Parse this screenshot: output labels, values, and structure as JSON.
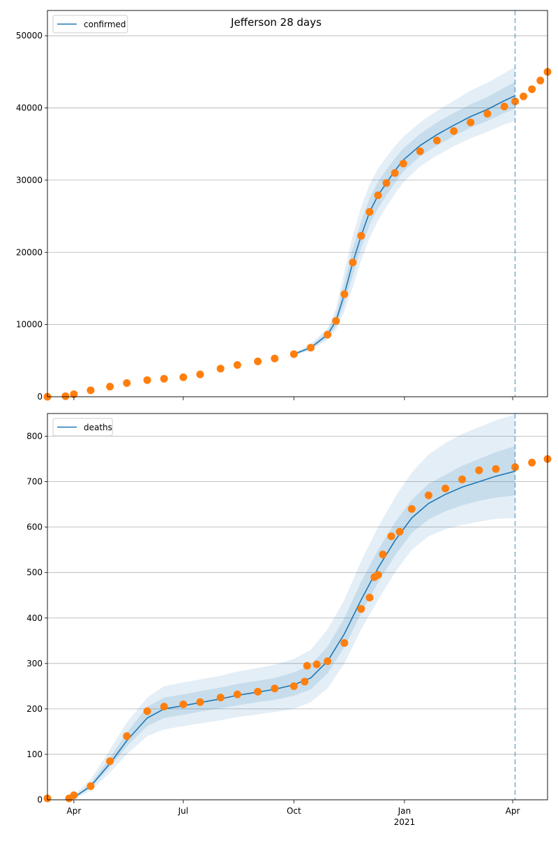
{
  "figure": {
    "title": "Jefferson 28 days",
    "colors": {
      "model": "#1f77b4",
      "observed": "#ff7f0e",
      "band": "#1f77b4",
      "grid": "#b0b0b0"
    }
  },
  "chart_data": [
    {
      "type": "line",
      "name": "confirmed-panel",
      "legend": [
        "confirmed"
      ],
      "legend_placement": "top-left",
      "grid": "y",
      "ylim": [
        0,
        53500
      ],
      "yticks": [
        0,
        10000,
        20000,
        30000,
        40000,
        50000
      ],
      "ytick_labels": [
        "0",
        "10000",
        "20000",
        "30000",
        "40000",
        "50000"
      ],
      "xlim": [
        "2020-03-10",
        "2021-04-30"
      ],
      "xticks": [
        "2020-04-01",
        "2020-07-01",
        "2020-10-01",
        "2021-01-01",
        "2021-04-01"
      ],
      "xtick_labels": [
        "Apr",
        "Jul",
        "Oct",
        "Jan",
        "Apr"
      ],
      "xtick_sublabel": "2021",
      "forecast_start": "2021-04-03",
      "series": [
        {
          "name": "confirmed",
          "role": "model",
          "x": [
            "2020-10-01",
            "2020-10-15",
            "2020-10-29",
            "2020-11-05",
            "2020-11-12",
            "2020-11-19",
            "2020-11-26",
            "2020-12-03",
            "2020-12-10",
            "2020-12-17",
            "2020-12-24",
            "2020-12-31",
            "2021-01-14",
            "2021-01-28",
            "2021-02-11",
            "2021-02-25",
            "2021-03-11",
            "2021-03-25",
            "2021-04-03"
          ],
          "y": [
            5900,
            6800,
            8600,
            10500,
            14200,
            18600,
            22300,
            25600,
            27900,
            29600,
            31300,
            32800,
            34800,
            36300,
            37600,
            38800,
            39800,
            41000,
            41700
          ]
        },
        {
          "name": "confirmed observed",
          "role": "observed",
          "x": [
            "2020-03-10",
            "2020-03-25",
            "2020-04-01",
            "2020-04-15",
            "2020-05-01",
            "2020-05-15",
            "2020-06-01",
            "2020-06-15",
            "2020-07-01",
            "2020-07-15",
            "2020-08-01",
            "2020-08-15",
            "2020-09-01",
            "2020-09-15",
            "2020-10-01",
            "2020-10-15",
            "2020-10-29",
            "2020-11-05",
            "2020-11-12",
            "2020-11-19",
            "2020-11-26",
            "2020-12-03",
            "2020-12-10",
            "2020-12-17",
            "2020-12-24",
            "2020-12-31",
            "2021-01-14",
            "2021-01-28",
            "2021-02-11",
            "2021-02-25",
            "2021-03-11",
            "2021-03-25",
            "2021-04-03",
            "2021-04-10",
            "2021-04-17",
            "2021-04-24",
            "2021-04-30"
          ],
          "y": [
            0,
            80,
            350,
            900,
            1400,
            1900,
            2300,
            2500,
            2700,
            3100,
            3900,
            4400,
            4900,
            5300,
            5900,
            6800,
            8600,
            10500,
            14200,
            18600,
            22300,
            25600,
            27900,
            29600,
            31000,
            32300,
            34000,
            35500,
            36800,
            38000,
            39200,
            40200,
            40900,
            41600,
            42600,
            43800,
            45000
          ]
        }
      ],
      "bands": [
        {
          "x": [
            "2020-10-01",
            "2020-10-15",
            "2020-10-29",
            "2020-11-05",
            "2020-11-12",
            "2020-11-19",
            "2020-11-26",
            "2020-12-03",
            "2020-12-10",
            "2020-12-17",
            "2020-12-24",
            "2020-12-31",
            "2021-01-14",
            "2021-01-28",
            "2021-02-11",
            "2021-02-25",
            "2021-03-11",
            "2021-03-25",
            "2021-04-03"
          ],
          "lower": [
            5700,
            6400,
            7900,
            9200,
            11800,
            15200,
            18900,
            22000,
            24400,
            26300,
            28100,
            29700,
            31900,
            33400,
            34700,
            35800,
            36700,
            37700,
            38200
          ],
          "upper": [
            6100,
            7300,
            9500,
            12200,
            17300,
            22300,
            26300,
            29400,
            31600,
            33200,
            34700,
            36000,
            38000,
            39600,
            41000,
            42400,
            43500,
            44800,
            45700
          ]
        },
        {
          "x": [
            "2020-10-01",
            "2020-10-15",
            "2020-10-29",
            "2020-11-05",
            "2020-11-12",
            "2020-11-19",
            "2020-11-26",
            "2020-12-03",
            "2020-12-10",
            "2020-12-17",
            "2020-12-24",
            "2020-12-31",
            "2021-01-14",
            "2021-01-28",
            "2021-02-11",
            "2021-02-25",
            "2021-03-11",
            "2021-03-25",
            "2021-04-03"
          ],
          "lower": [
            5800,
            6600,
            8200,
            9800,
            12900,
            16800,
            20600,
            23800,
            26100,
            27900,
            29600,
            31200,
            33300,
            34800,
            36100,
            37300,
            38200,
            39300,
            39900
          ],
          "upper": [
            6000,
            7000,
            9100,
            11400,
            15800,
            20600,
            24300,
            27500,
            29800,
            31400,
            33000,
            34400,
            36400,
            38000,
            39300,
            40500,
            41500,
            42800,
            43600
          ]
        }
      ]
    },
    {
      "type": "line",
      "name": "deaths-panel",
      "legend": [
        "deaths"
      ],
      "legend_placement": "top-left",
      "grid": "y",
      "ylim": [
        0,
        850
      ],
      "yticks": [
        0,
        100,
        200,
        300,
        400,
        500,
        600,
        700,
        800
      ],
      "ytick_labels": [
        "0",
        "100",
        "200",
        "300",
        "400",
        "500",
        "600",
        "700",
        "800"
      ],
      "xlim": [
        "2020-03-10",
        "2021-04-30"
      ],
      "xticks": [
        "2020-04-01",
        "2020-07-01",
        "2020-10-01",
        "2021-01-01",
        "2021-04-01"
      ],
      "xtick_labels": [
        "Apr",
        "Jul",
        "Oct",
        "Jan",
        "Apr"
      ],
      "xtick_sublabel": "2021",
      "forecast_start": "2021-04-03",
      "series": [
        {
          "name": "deaths",
          "role": "model",
          "x": [
            "2020-04-01",
            "2020-04-15",
            "2020-05-01",
            "2020-05-15",
            "2020-06-01",
            "2020-06-15",
            "2020-07-01",
            "2020-07-15",
            "2020-08-01",
            "2020-08-15",
            "2020-09-01",
            "2020-09-15",
            "2020-10-01",
            "2020-10-15",
            "2020-10-29",
            "2020-11-12",
            "2020-11-26",
            "2020-12-10",
            "2020-12-24",
            "2021-01-07",
            "2021-01-21",
            "2021-02-04",
            "2021-02-18",
            "2021-03-04",
            "2021-03-18",
            "2021-04-03"
          ],
          "y": [
            5,
            30,
            80,
            130,
            180,
            200,
            207,
            214,
            222,
            230,
            237,
            243,
            253,
            268,
            305,
            365,
            440,
            510,
            570,
            620,
            652,
            672,
            688,
            700,
            712,
            723
          ]
        },
        {
          "name": "deaths observed",
          "role": "observed",
          "x": [
            "2020-03-10",
            "2020-03-28",
            "2020-04-01",
            "2020-04-15",
            "2020-05-01",
            "2020-05-15",
            "2020-06-01",
            "2020-06-15",
            "2020-07-01",
            "2020-07-15",
            "2020-08-01",
            "2020-08-15",
            "2020-09-01",
            "2020-09-15",
            "2020-10-01",
            "2020-10-10",
            "2020-10-12",
            "2020-10-20",
            "2020-10-29",
            "2020-11-12",
            "2020-11-26",
            "2020-12-03",
            "2020-12-07",
            "2020-12-10",
            "2020-12-14",
            "2020-12-21",
            "2020-12-28",
            "2021-01-07",
            "2021-01-21",
            "2021-02-04",
            "2021-02-18",
            "2021-03-04",
            "2021-03-18",
            "2021-04-03",
            "2021-04-17",
            "2021-04-30"
          ],
          "y": [
            3,
            3,
            10,
            30,
            85,
            140,
            195,
            205,
            210,
            215,
            225,
            232,
            238,
            245,
            250,
            260,
            295,
            298,
            305,
            345,
            420,
            445,
            490,
            495,
            540,
            580,
            590,
            640,
            670,
            685,
            705,
            725,
            728,
            732,
            742,
            750
          ]
        }
      ],
      "bands": [
        {
          "x": [
            "2020-04-01",
            "2020-04-15",
            "2020-05-01",
            "2020-05-15",
            "2020-06-01",
            "2020-06-15",
            "2020-07-01",
            "2020-07-15",
            "2020-08-01",
            "2020-08-15",
            "2020-09-01",
            "2020-09-15",
            "2020-10-01",
            "2020-10-15",
            "2020-10-29",
            "2020-11-12",
            "2020-11-26",
            "2020-12-10",
            "2020-12-24",
            "2021-01-07",
            "2021-01-21",
            "2021-02-04",
            "2021-02-18",
            "2021-03-04",
            "2021-03-18",
            "2021-04-03"
          ],
          "lower": [
            2,
            20,
            60,
            100,
            140,
            155,
            162,
            168,
            175,
            182,
            188,
            193,
            200,
            215,
            245,
            300,
            375,
            440,
            500,
            550,
            580,
            595,
            605,
            612,
            618,
            620
          ],
          "upper": [
            10,
            45,
            110,
            170,
            225,
            250,
            258,
            265,
            273,
            282,
            290,
            297,
            310,
            330,
            375,
            440,
            525,
            600,
            665,
            720,
            760,
            785,
            805,
            820,
            835,
            848
          ]
        },
        {
          "x": [
            "2020-04-01",
            "2020-04-15",
            "2020-05-01",
            "2020-05-15",
            "2020-06-01",
            "2020-06-15",
            "2020-07-01",
            "2020-07-15",
            "2020-08-01",
            "2020-08-15",
            "2020-09-01",
            "2020-09-15",
            "2020-10-01",
            "2020-10-15",
            "2020-10-29",
            "2020-11-12",
            "2020-11-26",
            "2020-12-10",
            "2020-12-24",
            "2021-01-07",
            "2021-01-21",
            "2021-02-04",
            "2021-02-18",
            "2021-03-04",
            "2021-03-18",
            "2021-04-03"
          ],
          "lower": [
            4,
            26,
            72,
            118,
            162,
            180,
            187,
            194,
            201,
            208,
            215,
            220,
            229,
            243,
            278,
            336,
            410,
            478,
            537,
            587,
            617,
            635,
            648,
            658,
            665,
            670
          ],
          "upper": [
            7,
            36,
            92,
            148,
            205,
            225,
            232,
            239,
            247,
            255,
            262,
            268,
            280,
            297,
            337,
            400,
            480,
            550,
            610,
            660,
            695,
            715,
            735,
            750,
            765,
            778
          ]
        }
      ]
    }
  ]
}
